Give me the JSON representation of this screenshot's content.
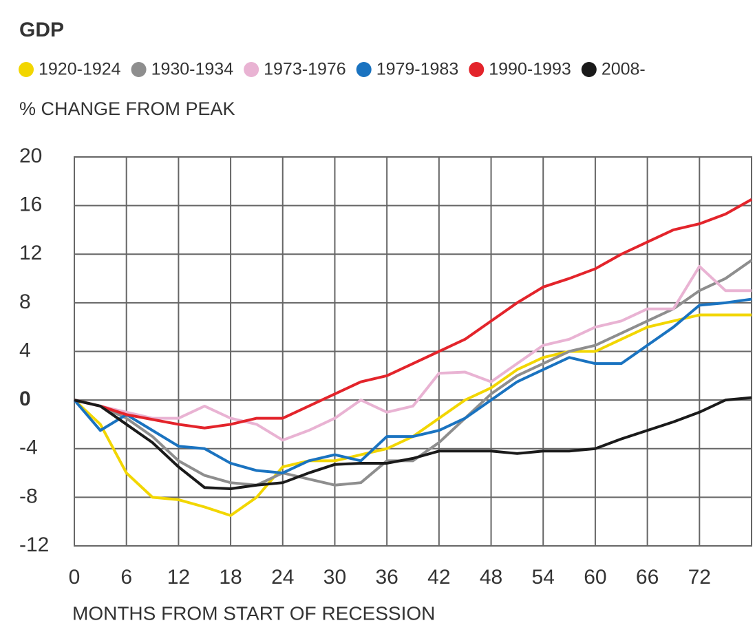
{
  "chart_data": {
    "type": "line",
    "title": "GDP",
    "subtitle": "% CHANGE FROM PEAK",
    "x_label": "MONTHS FROM START OF RECESSION",
    "x": [
      0,
      3,
      6,
      9,
      12,
      15,
      18,
      21,
      24,
      27,
      30,
      33,
      36,
      39,
      42,
      45,
      48,
      51,
      54,
      57,
      60,
      63,
      66,
      69,
      72,
      75,
      78
    ],
    "xlim": [
      0,
      78
    ],
    "xticks": [
      0,
      6,
      12,
      18,
      24,
      30,
      36,
      42,
      48,
      54,
      60,
      66,
      72
    ],
    "ylim": [
      -12,
      20
    ],
    "yticks": [
      -12,
      -8,
      -4,
      0,
      4,
      8,
      12,
      16,
      20
    ],
    "grid": true,
    "series": [
      {
        "name": "1920-1924",
        "color": "#f2d600",
        "values": [
          0,
          -2,
          -6,
          -8,
          -8.2,
          -8.8,
          -9.5,
          -8,
          -5.5,
          -5,
          -5,
          -4.5,
          -4,
          -3,
          -1.5,
          0,
          1,
          2.5,
          3.5,
          4,
          4,
          5,
          6,
          6.5,
          7,
          7,
          7
        ]
      },
      {
        "name": "1930-1934",
        "color": "#8e8e8e",
        "values": [
          0,
          -0.5,
          -1.5,
          -3,
          -5,
          -6.2,
          -6.8,
          -7,
          -6,
          -6.5,
          -7,
          -6.8,
          -5,
          -5,
          -3.5,
          -1.5,
          0.5,
          2,
          3,
          4,
          4.5,
          5.5,
          6.5,
          7.5,
          9,
          10,
          11.5
        ]
      },
      {
        "name": "1973-1976",
        "color": "#e9b3d3",
        "values": [
          0,
          -0.5,
          -1,
          -1.5,
          -1.5,
          -0.5,
          -1.5,
          -2,
          -3.3,
          -2.5,
          -1.5,
          0,
          -1,
          -0.5,
          2.2,
          2.3,
          1.5,
          3,
          4.5,
          5,
          6,
          6.5,
          7.5,
          7.5,
          11,
          9,
          9
        ]
      },
      {
        "name": "1979-1983",
        "color": "#1a73c0",
        "values": [
          0,
          -2.5,
          -1.2,
          -2.5,
          -3.8,
          -4,
          -5.2,
          -5.8,
          -6,
          -5,
          -4.5,
          -5,
          -3,
          -3,
          -2.5,
          -1.5,
          0,
          1.5,
          2.5,
          3.5,
          3,
          3,
          4.5,
          6,
          7.8,
          8,
          8.3
        ]
      },
      {
        "name": "1990-1993",
        "color": "#e3242b",
        "values": [
          0,
          -0.5,
          -1.2,
          -1.6,
          -2,
          -2.3,
          -2,
          -1.5,
          -1.5,
          -0.5,
          0.5,
          1.5,
          2,
          3,
          4,
          5,
          6.5,
          8,
          9.3,
          10,
          10.8,
          12,
          13,
          14,
          14.5,
          15.3,
          16.5
        ]
      },
      {
        "name": "2008-",
        "color": "#1a1a1a",
        "values": [
          0,
          -0.5,
          -2,
          -3.5,
          -5.5,
          -7.2,
          -7.3,
          -7,
          -6.8,
          -6,
          -5.3,
          -5.2,
          -5.2,
          -4.8,
          -4.2,
          -4.2,
          -4.2,
          -4.4,
          -4.2,
          -4.2,
          -4,
          -3.2,
          -2.5,
          -1.8,
          -1,
          0,
          0.2
        ]
      }
    ]
  }
}
